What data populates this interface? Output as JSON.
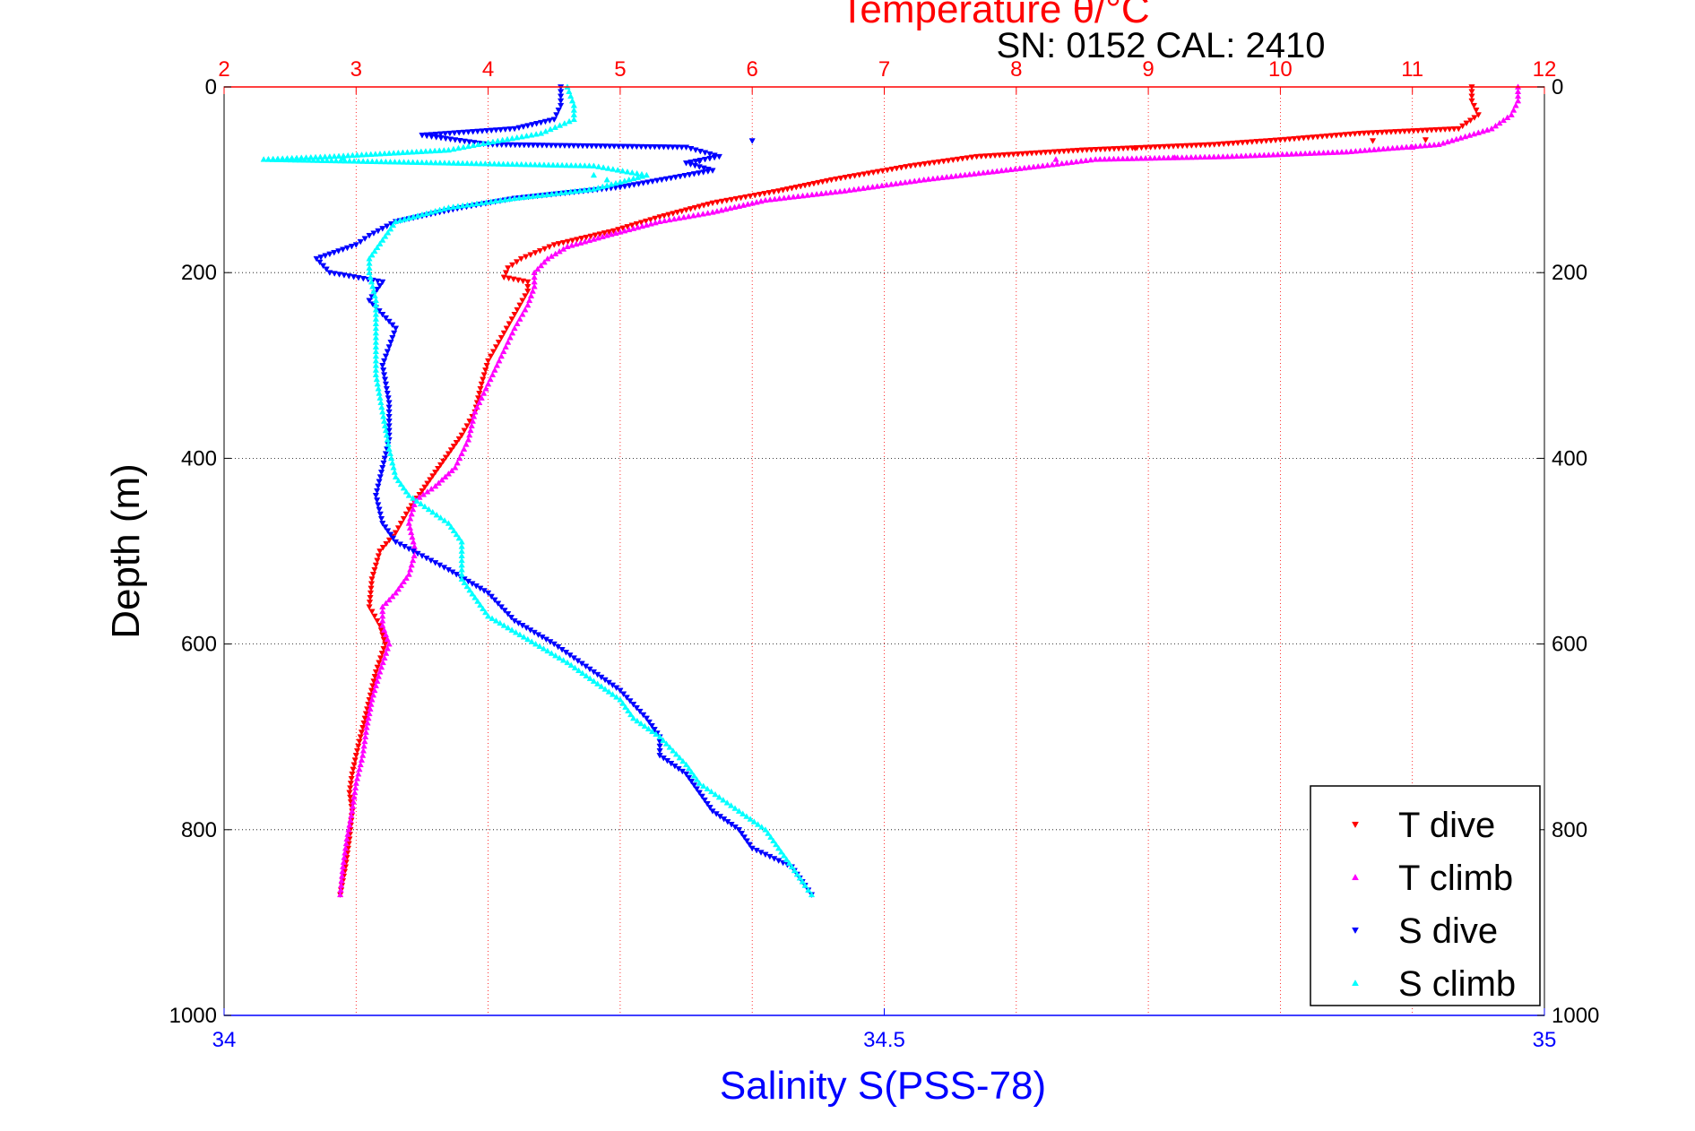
{
  "chart_data": {
    "type": "scatter",
    "title": "SN: 0152  CAL: 2410",
    "top_axis": {
      "label": "Temperature θ/°C",
      "range": [
        2,
        12
      ],
      "ticks": [
        "2",
        "3",
        "4",
        "5",
        "6",
        "7",
        "8",
        "9",
        "10",
        "11",
        "12"
      ],
      "color": "#ff0000"
    },
    "bottom_axis": {
      "label": "Salinity S(PSS-78)",
      "range": [
        34,
        35
      ],
      "ticks": [
        "34",
        "34.5",
        "35"
      ],
      "color": "#0000ff"
    },
    "y_axis": {
      "label": "Depth (m)",
      "range": [
        0,
        1000
      ],
      "reversed": true,
      "ticks": [
        "0",
        "200",
        "400",
        "600",
        "800",
        "1000"
      ]
    },
    "grid": true,
    "legend_position": "bottom-right",
    "series": [
      {
        "name": "T dive",
        "axis": "temperature",
        "marker": "triangle-down",
        "color": "#ff0000",
        "points": [
          [
            11.45,
            0
          ],
          [
            11.45,
            15
          ],
          [
            11.5,
            30
          ],
          [
            11.35,
            45
          ],
          [
            10.6,
            50
          ],
          [
            10.0,
            57
          ],
          [
            9.5,
            62
          ],
          [
            8.5,
            68
          ],
          [
            7.7,
            75
          ],
          [
            7.2,
            85
          ],
          [
            6.6,
            100
          ],
          [
            6.2,
            112
          ],
          [
            5.7,
            125
          ],
          [
            5.3,
            140
          ],
          [
            4.95,
            155
          ],
          [
            4.5,
            170
          ],
          [
            4.25,
            185
          ],
          [
            4.15,
            195
          ],
          [
            4.12,
            205
          ],
          [
            4.3,
            210
          ],
          [
            4.3,
            220
          ],
          [
            4.2,
            245
          ],
          [
            4.1,
            270
          ],
          [
            4.0,
            295
          ],
          [
            3.95,
            320
          ],
          [
            3.9,
            350
          ],
          [
            3.8,
            375
          ],
          [
            3.7,
            395
          ],
          [
            3.6,
            415
          ],
          [
            3.5,
            435
          ],
          [
            3.4,
            455
          ],
          [
            3.3,
            480
          ],
          [
            3.18,
            500
          ],
          [
            3.12,
            530
          ],
          [
            3.1,
            560
          ],
          [
            3.18,
            580
          ],
          [
            3.22,
            600
          ],
          [
            3.15,
            630
          ],
          [
            3.1,
            660
          ],
          [
            3.05,
            690
          ],
          [
            3.0,
            720
          ],
          [
            2.97,
            740
          ],
          [
            2.95,
            760
          ],
          [
            2.97,
            780
          ],
          [
            2.95,
            810
          ],
          [
            2.92,
            840
          ],
          [
            2.88,
            870
          ]
        ]
      },
      {
        "name": "T climb",
        "axis": "temperature",
        "marker": "triangle-up",
        "color": "#ff00ff",
        "points": [
          [
            11.8,
            0
          ],
          [
            11.8,
            15
          ],
          [
            11.75,
            30
          ],
          [
            11.6,
            45
          ],
          [
            11.2,
            62
          ],
          [
            10.5,
            70
          ],
          [
            9.6,
            75
          ],
          [
            8.6,
            78
          ],
          [
            8.2,
            85
          ],
          [
            7.3,
            100
          ],
          [
            6.7,
            112
          ],
          [
            6.1,
            122
          ],
          [
            5.7,
            135
          ],
          [
            5.3,
            145
          ],
          [
            4.9,
            160
          ],
          [
            4.6,
            172
          ],
          [
            4.45,
            185
          ],
          [
            4.35,
            200
          ],
          [
            4.35,
            215
          ],
          [
            4.3,
            235
          ],
          [
            4.2,
            260
          ],
          [
            4.1,
            290
          ],
          [
            4.0,
            320
          ],
          [
            3.9,
            350
          ],
          [
            3.85,
            380
          ],
          [
            3.75,
            410
          ],
          [
            3.6,
            430
          ],
          [
            3.45,
            445
          ],
          [
            3.4,
            470
          ],
          [
            3.45,
            500
          ],
          [
            3.4,
            525
          ],
          [
            3.3,
            545
          ],
          [
            3.2,
            560
          ],
          [
            3.2,
            580
          ],
          [
            3.25,
            600
          ],
          [
            3.18,
            630
          ],
          [
            3.12,
            660
          ],
          [
            3.08,
            690
          ],
          [
            3.05,
            720
          ],
          [
            3.0,
            750
          ],
          [
            2.97,
            780
          ],
          [
            2.93,
            810
          ],
          [
            2.9,
            840
          ],
          [
            2.88,
            870
          ]
        ]
      },
      {
        "name": "S dive",
        "axis": "salinity",
        "marker": "triangle-down",
        "color": "#0000ff",
        "points": [
          [
            34.255,
            0
          ],
          [
            34.255,
            20
          ],
          [
            34.25,
            35
          ],
          [
            34.22,
            45
          ],
          [
            34.15,
            52
          ],
          [
            34.2,
            62
          ],
          [
            34.35,
            65
          ],
          [
            34.375,
            75
          ],
          [
            34.35,
            82
          ],
          [
            34.37,
            90
          ],
          [
            34.3,
            108
          ],
          [
            34.22,
            120
          ],
          [
            34.18,
            130
          ],
          [
            34.13,
            145
          ],
          [
            34.11,
            160
          ],
          [
            34.1,
            170
          ],
          [
            34.07,
            185
          ],
          [
            34.08,
            200
          ],
          [
            34.12,
            210
          ],
          [
            34.11,
            230
          ],
          [
            34.13,
            260
          ],
          [
            34.12,
            300
          ],
          [
            34.125,
            340
          ],
          [
            34.125,
            380
          ],
          [
            34.12,
            410
          ],
          [
            34.115,
            440
          ],
          [
            34.12,
            470
          ],
          [
            34.13,
            490
          ],
          [
            34.15,
            505
          ],
          [
            34.17,
            520
          ],
          [
            34.2,
            545
          ],
          [
            34.22,
            575
          ],
          [
            34.25,
            600
          ],
          [
            34.28,
            630
          ],
          [
            34.3,
            650
          ],
          [
            34.32,
            680
          ],
          [
            34.33,
            700
          ],
          [
            34.33,
            720
          ],
          [
            34.35,
            740
          ],
          [
            34.36,
            760
          ],
          [
            34.37,
            780
          ],
          [
            34.39,
            800
          ],
          [
            34.4,
            820
          ],
          [
            34.43,
            840
          ],
          [
            34.44,
            860
          ],
          [
            34.445,
            870
          ]
        ]
      },
      {
        "name": "S climb",
        "axis": "salinity",
        "marker": "triangle-up",
        "color": "#00ffff",
        "points": [
          [
            34.26,
            0
          ],
          [
            34.265,
            20
          ],
          [
            34.265,
            35
          ],
          [
            34.24,
            50
          ],
          [
            34.2,
            60
          ],
          [
            34.17,
            68
          ],
          [
            34.08,
            75
          ],
          [
            34.03,
            78
          ],
          [
            34.28,
            85
          ],
          [
            34.32,
            95
          ],
          [
            34.28,
            110
          ],
          [
            34.22,
            120
          ],
          [
            34.17,
            130
          ],
          [
            34.13,
            145
          ],
          [
            34.12,
            165
          ],
          [
            34.11,
            185
          ],
          [
            34.11,
            200
          ],
          [
            34.115,
            230
          ],
          [
            34.115,
            270
          ],
          [
            34.115,
            310
          ],
          [
            34.12,
            350
          ],
          [
            34.125,
            390
          ],
          [
            34.13,
            420
          ],
          [
            34.14,
            440
          ],
          [
            34.17,
            470
          ],
          [
            34.18,
            490
          ],
          [
            34.18,
            510
          ],
          [
            34.18,
            530
          ],
          [
            34.19,
            550
          ],
          [
            34.2,
            570
          ],
          [
            34.23,
            595
          ],
          [
            34.26,
            620
          ],
          [
            34.28,
            640
          ],
          [
            34.3,
            660
          ],
          [
            34.31,
            680
          ],
          [
            34.33,
            700
          ],
          [
            34.35,
            730
          ],
          [
            34.36,
            750
          ],
          [
            34.39,
            780
          ],
          [
            34.41,
            800
          ],
          [
            34.42,
            820
          ],
          [
            34.43,
            840
          ],
          [
            34.44,
            860
          ],
          [
            34.445,
            870
          ]
        ]
      }
    ],
    "scatter_cloud": [
      {
        "series": 0,
        "x": 11.1,
        "y": 57
      },
      {
        "series": 0,
        "x": 10.7,
        "y": 58
      },
      {
        "series": 0,
        "x": 8.9,
        "y": 66
      },
      {
        "series": 1,
        "x": 11.0,
        "y": 65
      },
      {
        "series": 1,
        "x": 9.2,
        "y": 76
      },
      {
        "series": 1,
        "x": 8.3,
        "y": 78
      },
      {
        "series": 2,
        "x": 34.4,
        "y": 58
      },
      {
        "series": 2,
        "x": 34.36,
        "y": 80
      },
      {
        "series": 3,
        "x": 34.09,
        "y": 77
      },
      {
        "series": 3,
        "x": 34.28,
        "y": 95
      },
      {
        "series": 3,
        "x": 34.29,
        "y": 100
      }
    ]
  }
}
